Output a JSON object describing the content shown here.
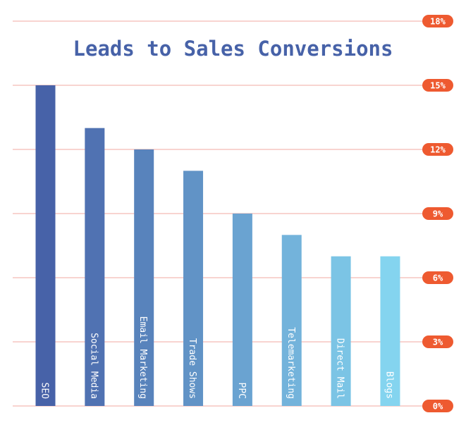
{
  "chart_data": {
    "type": "bar",
    "title": "Leads to Sales Conversions",
    "categories": [
      "SEO",
      "Social Media",
      "Email Marketing",
      "Trade Shows",
      "PPC",
      "Telemarketing",
      "Direct Mail",
      "Blogs"
    ],
    "values": [
      15,
      13,
      12,
      11,
      9,
      8,
      7,
      7
    ],
    "ylim": [
      0,
      18
    ],
    "yticks": [
      0,
      3,
      6,
      9,
      12,
      15,
      18
    ],
    "ytick_suffix": "%",
    "xlabel": "",
    "ylabel": "",
    "grid": true,
    "axis_position": "right",
    "colors": {
      "bar_start": "#4762a8",
      "bar_end": "#84d4ef",
      "grid": "#f0a8a0",
      "tick_badge": "#ee5a30",
      "tick_text": "#ffffff",
      "bar_label": "#ffffff",
      "title": "#4762a8"
    }
  }
}
